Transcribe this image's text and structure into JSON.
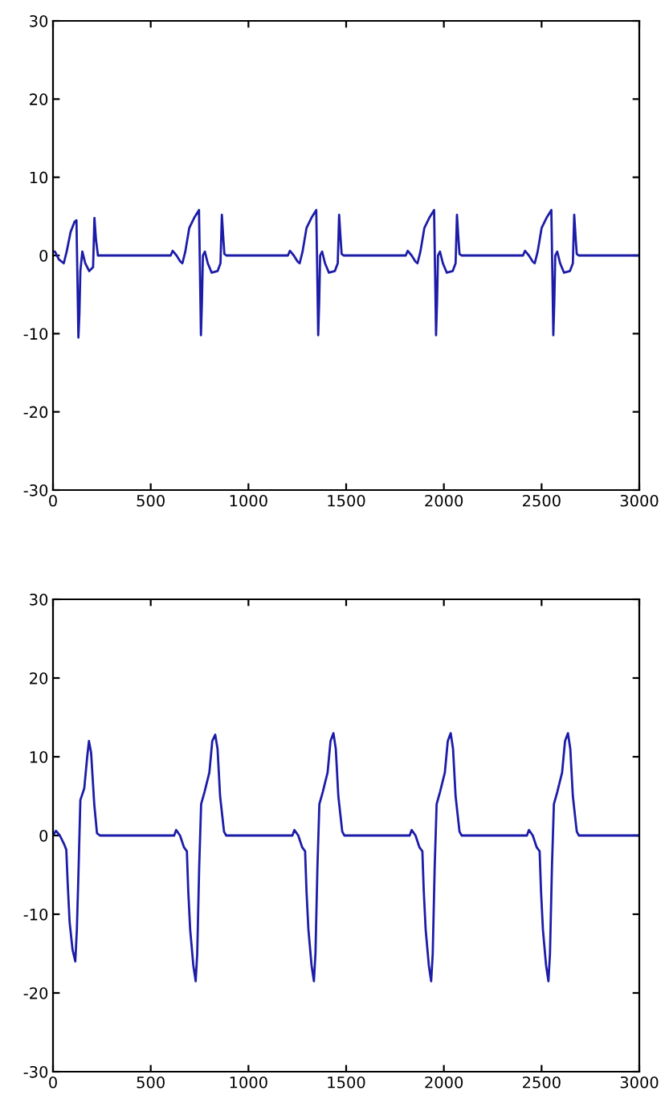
{
  "chart_data": [
    {
      "type": "line",
      "xlim": [
        0,
        3000
      ],
      "ylim": [
        -30,
        30
      ],
      "xticks": [
        0,
        500,
        1000,
        1500,
        2000,
        2500,
        3000
      ],
      "yticks": [
        -30,
        -20,
        -10,
        0,
        10,
        20,
        30
      ],
      "series": [
        {
          "color": "#1c1ca8",
          "x": [
            0,
            10,
            30,
            55,
            70,
            90,
            110,
            120,
            125,
            130,
            135,
            140,
            150,
            165,
            185,
            205,
            212,
            220,
            230,
            250,
            602,
            612,
            632,
            652,
            662,
            677,
            697,
            722,
            747,
            752,
            757,
            762,
            767,
            777,
            792,
            812,
            842,
            857,
            864,
            872,
            877,
            887,
            1202,
            1212,
            1232,
            1252,
            1262,
            1277,
            1297,
            1322,
            1347,
            1352,
            1357,
            1362,
            1367,
            1377,
            1392,
            1412,
            1442,
            1457,
            1464,
            1472,
            1477,
            1487,
            1805,
            1815,
            1835,
            1855,
            1865,
            1880,
            1900,
            1925,
            1950,
            1955,
            1960,
            1965,
            1970,
            1980,
            1995,
            2015,
            2045,
            2060,
            2067,
            2075,
            2080,
            2090,
            2405,
            2415,
            2435,
            2455,
            2465,
            2480,
            2500,
            2525,
            2550,
            2555,
            2560,
            2565,
            2570,
            2580,
            2595,
            2615,
            2645,
            2660,
            2667,
            2675,
            2680,
            2690,
            3000
          ],
          "values": [
            0.5,
            0.5,
            -0.5,
            -1,
            0.5,
            3,
            4.3,
            4.5,
            -3,
            -10.5,
            -7.5,
            -2,
            0.5,
            -1,
            -2,
            -1.5,
            4.8,
            2,
            0,
            0,
            0,
            0.6,
            0,
            -0.8,
            -1,
            0.5,
            3.5,
            4.8,
            5.8,
            -2,
            -10.2,
            -6,
            0,
            0.5,
            -1,
            -2.2,
            -2,
            -1,
            5.2,
            2,
            0.2,
            0,
            0,
            0.6,
            0,
            -0.8,
            -1,
            0.5,
            3.5,
            4.8,
            5.8,
            -2,
            -10.2,
            -6,
            0,
            0.5,
            -1,
            -2.2,
            -2,
            -1,
            5.2,
            2,
            0.2,
            0,
            0,
            0.6,
            0,
            -0.8,
            -1,
            0.5,
            3.5,
            4.8,
            5.8,
            -2,
            -10.2,
            -6,
            0,
            0.5,
            -1,
            -2.2,
            -2,
            -1,
            5.2,
            2,
            0.2,
            0,
            0,
            0.6,
            0,
            -0.8,
            -1,
            0.5,
            3.5,
            4.8,
            5.8,
            -2,
            -10.2,
            -6,
            0,
            0.5,
            -1,
            -2.2,
            -2,
            -1,
            5.2,
            2,
            0.2,
            0,
            0
          ]
        }
      ]
    },
    {
      "type": "line",
      "xlim": [
        0,
        3000
      ],
      "ylim": [
        -30,
        30
      ],
      "xticks": [
        0,
        500,
        1000,
        1500,
        2000,
        2500,
        3000
      ],
      "yticks": [
        -30,
        -20,
        -10,
        0,
        10,
        20,
        30
      ],
      "series": [
        {
          "color": "#1c1ca8",
          "x": [
            0,
            15,
            35,
            55,
            68,
            75,
            85,
            100,
            114,
            122,
            130,
            140,
            160,
            175,
            184,
            195,
            211,
            225,
            240,
            620,
            630,
            650,
            670,
            685,
            692,
            702,
            718,
            730,
            738,
            748,
            758,
            775,
            800,
            815,
            830,
            842,
            855,
            875,
            886,
            1225,
            1235,
            1255,
            1275,
            1290,
            1297,
            1307,
            1323,
            1335,
            1343,
            1353,
            1363,
            1380,
            1405,
            1420,
            1435,
            1447,
            1460,
            1480,
            1491,
            1825,
            1835,
            1855,
            1875,
            1890,
            1897,
            1907,
            1923,
            1935,
            1943,
            1953,
            1963,
            1980,
            2005,
            2020,
            2035,
            2047,
            2060,
            2080,
            2091,
            2425,
            2435,
            2455,
            2475,
            2490,
            2497,
            2507,
            2523,
            2535,
            2543,
            2553,
            2563,
            2580,
            2605,
            2620,
            2635,
            2647,
            2660,
            2680,
            2691,
            3000
          ],
          "values": [
            0,
            0.6,
            0,
            -1,
            -1.8,
            -6,
            -11,
            -14.5,
            -16,
            -12,
            -5,
            4.5,
            6,
            10,
            12,
            10.5,
            4,
            0.3,
            0,
            0,
            0.7,
            0,
            -1.5,
            -2,
            -7,
            -12,
            -16.5,
            -18.5,
            -15,
            -4,
            4,
            5.5,
            8,
            12,
            12.8,
            11,
            5,
            0.5,
            0,
            0,
            0.7,
            0,
            -1.5,
            -2,
            -7,
            -12,
            -16.5,
            -18.5,
            -15,
            -4,
            4,
            5.5,
            8,
            12,
            13,
            11,
            5,
            0.5,
            0,
            0,
            0.7,
            0,
            -1.5,
            -2,
            -7,
            -12,
            -16.5,
            -18.5,
            -15,
            -4,
            4,
            5.5,
            8,
            12,
            13,
            11,
            5,
            0.5,
            0,
            0,
            0.7,
            0,
            -1.5,
            -2,
            -7,
            -12,
            -16.5,
            -18.5,
            -15,
            -4,
            4,
            5.5,
            8,
            12,
            13,
            11,
            5,
            0.5,
            0,
            0
          ]
        }
      ]
    }
  ]
}
